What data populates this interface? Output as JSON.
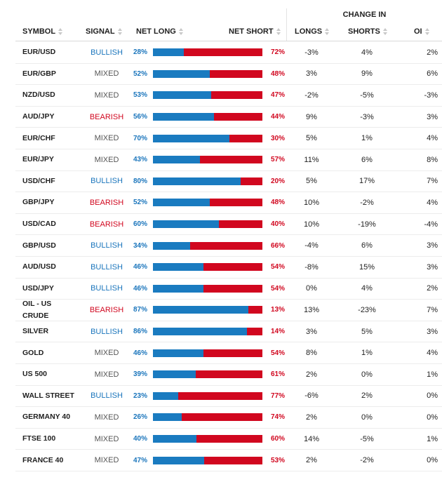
{
  "header": {
    "change_in": "CHANGE IN",
    "symbol": "SYMBOL",
    "signal": "SIGNAL",
    "net_long": "NET LONG",
    "net_short": "NET SHORT",
    "longs": "LONGS",
    "shorts": "SHORTS",
    "oi": "OI"
  },
  "colors": {
    "bullish": "#1a75bc",
    "bearish": "#d1071f",
    "mixed": "#555555",
    "bar_long": "#1a7bc0",
    "bar_short": "#d1071f"
  },
  "rows": [
    {
      "symbol": "EUR/USD",
      "signal": "BULLISH",
      "net_long": "28%",
      "net_short": "72%",
      "long_pct": 28,
      "longs": "-3%",
      "shorts": "4%",
      "oi": "2%"
    },
    {
      "symbol": "EUR/GBP",
      "signal": "MIXED",
      "net_long": "52%",
      "net_short": "48%",
      "long_pct": 52,
      "longs": "3%",
      "shorts": "9%",
      "oi": "6%"
    },
    {
      "symbol": "NZD/USD",
      "signal": "MIXED",
      "net_long": "53%",
      "net_short": "47%",
      "long_pct": 53,
      "longs": "-2%",
      "shorts": "-5%",
      "oi": "-3%"
    },
    {
      "symbol": "AUD/JPY",
      "signal": "BEARISH",
      "net_long": "56%",
      "net_short": "44%",
      "long_pct": 56,
      "longs": "9%",
      "shorts": "-3%",
      "oi": "3%"
    },
    {
      "symbol": "EUR/CHF",
      "signal": "MIXED",
      "net_long": "70%",
      "net_short": "30%",
      "long_pct": 70,
      "longs": "5%",
      "shorts": "1%",
      "oi": "4%"
    },
    {
      "symbol": "EUR/JPY",
      "signal": "MIXED",
      "net_long": "43%",
      "net_short": "57%",
      "long_pct": 43,
      "longs": "11%",
      "shorts": "6%",
      "oi": "8%"
    },
    {
      "symbol": "USD/CHF",
      "signal": "BULLISH",
      "net_long": "80%",
      "net_short": "20%",
      "long_pct": 80,
      "longs": "5%",
      "shorts": "17%",
      "oi": "7%"
    },
    {
      "symbol": "GBP/JPY",
      "signal": "BEARISH",
      "net_long": "52%",
      "net_short": "48%",
      "long_pct": 52,
      "longs": "10%",
      "shorts": "-2%",
      "oi": "4%"
    },
    {
      "symbol": "USD/CAD",
      "signal": "BEARISH",
      "net_long": "60%",
      "net_short": "40%",
      "long_pct": 60,
      "longs": "10%",
      "shorts": "-19%",
      "oi": "-4%"
    },
    {
      "symbol": "GBP/USD",
      "signal": "BULLISH",
      "net_long": "34%",
      "net_short": "66%",
      "long_pct": 34,
      "longs": "-4%",
      "shorts": "6%",
      "oi": "3%"
    },
    {
      "symbol": "AUD/USD",
      "signal": "BULLISH",
      "net_long": "46%",
      "net_short": "54%",
      "long_pct": 46,
      "longs": "-8%",
      "shorts": "15%",
      "oi": "3%"
    },
    {
      "symbol": "USD/JPY",
      "signal": "BULLISH",
      "net_long": "46%",
      "net_short": "54%",
      "long_pct": 46,
      "longs": "0%",
      "shorts": "4%",
      "oi": "2%"
    },
    {
      "symbol": "OIL - US CRUDE",
      "signal": "BEARISH",
      "net_long": "87%",
      "net_short": "13%",
      "long_pct": 87,
      "longs": "13%",
      "shorts": "-23%",
      "oi": "7%"
    },
    {
      "symbol": "SILVER",
      "signal": "BULLISH",
      "net_long": "86%",
      "net_short": "14%",
      "long_pct": 86,
      "longs": "3%",
      "shorts": "5%",
      "oi": "3%"
    },
    {
      "symbol": "GOLD",
      "signal": "MIXED",
      "net_long": "46%",
      "net_short": "54%",
      "long_pct": 46,
      "longs": "8%",
      "shorts": "1%",
      "oi": "4%"
    },
    {
      "symbol": "US 500",
      "signal": "MIXED",
      "net_long": "39%",
      "net_short": "61%",
      "long_pct": 39,
      "longs": "2%",
      "shorts": "0%",
      "oi": "1%"
    },
    {
      "symbol": "WALL STREET",
      "signal": "BULLISH",
      "net_long": "23%",
      "net_short": "77%",
      "long_pct": 23,
      "longs": "-6%",
      "shorts": "2%",
      "oi": "0%"
    },
    {
      "symbol": "GERMANY 40",
      "signal": "MIXED",
      "net_long": "26%",
      "net_short": "74%",
      "long_pct": 26,
      "longs": "2%",
      "shorts": "0%",
      "oi": "0%"
    },
    {
      "symbol": "FTSE 100",
      "signal": "MIXED",
      "net_long": "40%",
      "net_short": "60%",
      "long_pct": 40,
      "longs": "14%",
      "shorts": "-5%",
      "oi": "1%"
    },
    {
      "symbol": "FRANCE 40",
      "signal": "MIXED",
      "net_long": "47%",
      "net_short": "53%",
      "long_pct": 47,
      "longs": "2%",
      "shorts": "-2%",
      "oi": "0%"
    }
  ]
}
